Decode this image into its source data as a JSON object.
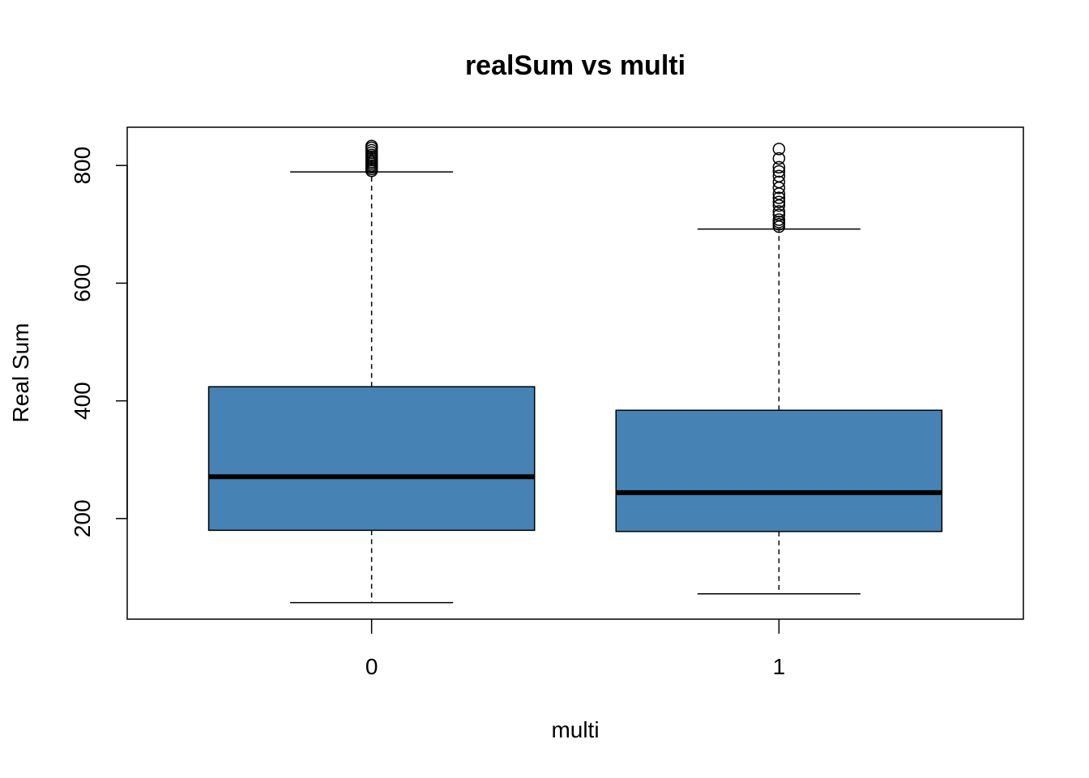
{
  "chart_data": {
    "type": "boxplot",
    "title": "realSum vs multi",
    "xlabel": "multi",
    "ylabel": "Real Sum",
    "categories": [
      "0",
      "1"
    ],
    "ylim": [
      29,
      865
    ],
    "yticks": [
      200,
      400,
      600,
      800
    ],
    "box_fill": "#4682B4",
    "grid": false,
    "legend": "none",
    "boxes": [
      {
        "category": "0",
        "whisker_low": 57,
        "q1": 180,
        "median": 271,
        "q3": 424,
        "whisker_high": 789,
        "outliers": [
          791,
          794,
          797,
          800,
          803,
          806,
          809,
          812,
          815,
          818,
          822,
          826,
          830,
          833
        ]
      },
      {
        "category": "1",
        "whisker_low": 72,
        "q1": 178,
        "median": 244,
        "q3": 384,
        "whisker_high": 692,
        "outliers": [
          696,
          700,
          704,
          708,
          716,
          722,
          732,
          738,
          745,
          752,
          762,
          772,
          782,
          790,
          797,
          812,
          828
        ]
      }
    ]
  }
}
